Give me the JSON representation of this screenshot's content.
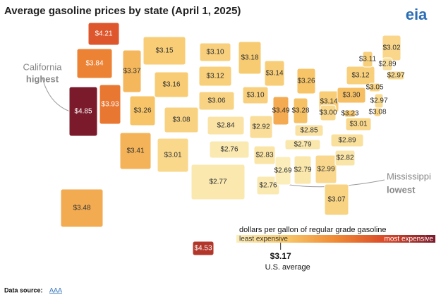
{
  "title": "Average gasoline prices by state (April 1, 2025)",
  "logo": "eia",
  "states": [
    {
      "value": 4.21,
      "label": "$4.21"
    },
    {
      "value": 3.84,
      "label": "$3.84"
    },
    {
      "value": 4.85,
      "label": "$4.85"
    },
    {
      "value": 3.93,
      "label": "$3.93"
    },
    {
      "value": 3.37,
      "label": "$3.37"
    },
    {
      "value": 3.15,
      "label": "$3.15"
    },
    {
      "value": 3.16,
      "label": "$3.16"
    },
    {
      "value": 3.26,
      "label": "$3.26"
    },
    {
      "value": 3.41,
      "label": "$3.41"
    },
    {
      "value": 3.08,
      "label": "$3.08"
    },
    {
      "value": 3.01,
      "label": "$3.01"
    },
    {
      "value": 3.1,
      "label": "$3.10"
    },
    {
      "value": 3.12,
      "label": "$3.12"
    },
    {
      "value": 3.06,
      "label": "$3.06"
    },
    {
      "value": 2.84,
      "label": "$2.84"
    },
    {
      "value": 2.76,
      "label": "$2.76"
    },
    {
      "value": 2.77,
      "label": "$2.77"
    },
    {
      "value": 3.18,
      "label": "$3.18"
    },
    {
      "value": 3.1,
      "label": "$3.10"
    },
    {
      "value": 2.92,
      "label": "$2.92"
    },
    {
      "value": 2.83,
      "label": "$2.83"
    },
    {
      "value": 2.76,
      "label": "$2.76"
    },
    {
      "value": 3.14,
      "label": "$3.14"
    },
    {
      "value": 3.49,
      "label": "$3.49"
    },
    {
      "value": 3.26,
      "label": "$3.26"
    },
    {
      "value": 3.28,
      "label": "$3.28"
    },
    {
      "value": 3.14,
      "label": "$3.14"
    },
    {
      "value": 2.85,
      "label": "$2.85"
    },
    {
      "value": 2.79,
      "label": "$2.79"
    },
    {
      "value": 2.69,
      "label": "$2.69"
    },
    {
      "value": 2.79,
      "label": "$2.79"
    },
    {
      "value": 2.99,
      "label": "$2.99"
    },
    {
      "value": 3.07,
      "label": "$3.07"
    },
    {
      "value": 2.82,
      "label": "$2.82"
    },
    {
      "value": 2.89,
      "label": "$2.89"
    },
    {
      "value": 3.01,
      "label": "$3.01"
    },
    {
      "value": 3.0,
      "label": "$3.00"
    },
    {
      "value": 3.3,
      "label": "$3.30"
    },
    {
      "value": 3.12,
      "label": "$3.12"
    },
    {
      "value": 3.02,
      "label": "$3.02"
    },
    {
      "value": 3.11,
      "label": "$3.11"
    },
    {
      "value": 2.89,
      "label": "$2.89"
    },
    {
      "value": 2.97,
      "label": "$2.97"
    },
    {
      "value": 3.05,
      "label": "$3.05"
    },
    {
      "value": 2.97,
      "label": "$2.97"
    },
    {
      "value": 3.08,
      "label": "$3.08"
    },
    {
      "value": 3.23,
      "label": "$3.23"
    },
    {
      "value": 3.48,
      "label": "$3.48"
    },
    {
      "value": 4.53,
      "label": "$4.53"
    }
  ],
  "annotations": [
    {
      "line1": "California",
      "line2": "highest"
    },
    {
      "line1": "Mississippi",
      "line2": "lowest"
    }
  ],
  "legend": {
    "title": "dollars per gallon of regular grade gasoline",
    "low": "least expensive",
    "high": "most expensive",
    "colors": [
      "#fbeebb",
      "#f7c76a",
      "#ef8a35",
      "#d94a2a",
      "#7a1a2b"
    ]
  },
  "us_average": {
    "value": 3.17,
    "label": "$3.17",
    "caption": "U.S. average"
  },
  "source": {
    "prefix": "Data source:",
    "link": "AAA"
  }
}
